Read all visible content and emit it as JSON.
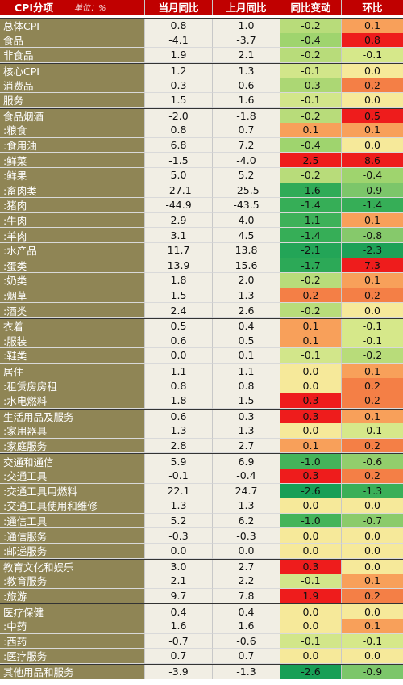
{
  "header": {
    "category": "CPI分项",
    "unit": "单位：%",
    "current_yoy": "当月同比",
    "prev_yoy": "上月同比",
    "yoy_change": "同比变动",
    "mom": "环比"
  },
  "rows": [
    {
      "name": "总体CPI",
      "cur": "0.8",
      "prev": "1.0",
      "chg": "-0.2",
      "mom": "0.1",
      "chg_color": "#b8dc7a",
      "mom_color": "#f8a05a",
      "group_start": true
    },
    {
      "name": "食品",
      "cur": "-4.1",
      "prev": "-3.7",
      "chg": "-0.4",
      "mom": "0.8",
      "chg_color": "#9fd46e",
      "mom_color": "#ee1c1c",
      "group_start": false
    },
    {
      "name": "非食品",
      "cur": "1.9",
      "prev": "2.1",
      "chg": "-0.2",
      "mom": "-0.1",
      "chg_color": "#b8dc7a",
      "mom_color": "#d6e88a",
      "group_start": false
    },
    {
      "name": "核心CPI",
      "cur": "1.2",
      "prev": "1.3",
      "chg": "-0.1",
      "mom": "0.0",
      "chg_color": "#d2e68a",
      "mom_color": "#f6e99a",
      "group_start": true
    },
    {
      "name": "消费品",
      "cur": "0.3",
      "prev": "0.6",
      "chg": "-0.3",
      "mom": "0.2",
      "chg_color": "#acd774",
      "mom_color": "#f47f46",
      "group_start": false
    },
    {
      "name": "服务",
      "cur": "1.5",
      "prev": "1.6",
      "chg": "-0.1",
      "mom": "0.0",
      "chg_color": "#d2e68a",
      "mom_color": "#f6e99a",
      "group_start": false
    },
    {
      "name": "食品烟酒",
      "cur": "-2.0",
      "prev": "-1.8",
      "chg": "-0.2",
      "mom": "0.5",
      "chg_color": "#b8dc7a",
      "mom_color": "#ee1c1c",
      "group_start": true
    },
    {
      "name": ":粮食",
      "cur": "0.8",
      "prev": "0.7",
      "chg": "0.1",
      "mom": "0.1",
      "chg_color": "#f8a05a",
      "mom_color": "#f8a05a",
      "group_start": false
    },
    {
      "name": ":食用油",
      "cur": "6.8",
      "prev": "7.2",
      "chg": "-0.4",
      "mom": "0.0",
      "chg_color": "#9fd46e",
      "mom_color": "#f6e99a",
      "group_start": false
    },
    {
      "name": ":鲜菜",
      "cur": "-1.5",
      "prev": "-4.0",
      "chg": "2.5",
      "mom": "8.6",
      "chg_color": "#ee1c1c",
      "mom_color": "#ee1c1c",
      "group_start": false
    },
    {
      "name": ":鲜果",
      "cur": "5.0",
      "prev": "5.2",
      "chg": "-0.2",
      "mom": "-0.4",
      "chg_color": "#b8dc7a",
      "mom_color": "#9fd46e",
      "group_start": false
    },
    {
      "name": ":畜肉类",
      "cur": "-27.1",
      "prev": "-25.5",
      "chg": "-1.6",
      "mom": "-0.9",
      "chg_color": "#2fab57",
      "mom_color": "#7cc66a",
      "group_start": false
    },
    {
      "name": " :猪肉",
      "cur": "-44.9",
      "prev": "-43.5",
      "chg": "-1.4",
      "mom": "-1.4",
      "chg_color": "#36ae57",
      "mom_color": "#36ae57",
      "group_start": false
    },
    {
      "name": " :牛肉",
      "cur": "2.9",
      "prev": "4.0",
      "chg": "-1.1",
      "mom": "0.1",
      "chg_color": "#3db159",
      "mom_color": "#f8a05a",
      "group_start": false
    },
    {
      "name": " :羊肉",
      "cur": "3.1",
      "prev": "4.5",
      "chg": "-1.4",
      "mom": "-0.8",
      "chg_color": "#36ae57",
      "mom_color": "#86c96b",
      "group_start": false
    },
    {
      "name": ":水产品",
      "cur": "11.7",
      "prev": "13.8",
      "chg": "-2.1",
      "mom": "-2.3",
      "chg_color": "#23a557",
      "mom_color": "#1da157",
      "group_start": false
    },
    {
      "name": ":蛋类",
      "cur": "13.9",
      "prev": "15.6",
      "chg": "-1.7",
      "mom": "7.3",
      "chg_color": "#2ca957",
      "mom_color": "#ee1c1c",
      "group_start": false
    },
    {
      "name": ":奶类",
      "cur": "1.8",
      "prev": "2.0",
      "chg": "-0.2",
      "mom": "0.1",
      "chg_color": "#b8dc7a",
      "mom_color": "#f8a05a",
      "group_start": false
    },
    {
      "name": ":烟草",
      "cur": "1.5",
      "prev": "1.3",
      "chg": "0.2",
      "mom": "0.2",
      "chg_color": "#f47f46",
      "mom_color": "#f47f46",
      "group_start": false
    },
    {
      "name": ":酒类",
      "cur": "2.4",
      "prev": "2.6",
      "chg": "-0.2",
      "mom": "0.0",
      "chg_color": "#b8dc7a",
      "mom_color": "#f6e99a",
      "group_start": false
    },
    {
      "name": "衣着",
      "cur": "0.5",
      "prev": "0.4",
      "chg": "0.1",
      "mom": "-0.1",
      "chg_color": "#f8a05a",
      "mom_color": "#d6e88a",
      "group_start": true
    },
    {
      "name": ":服装",
      "cur": "0.6",
      "prev": "0.5",
      "chg": "0.1",
      "mom": "-0.1",
      "chg_color": "#f8a05a",
      "mom_color": "#d6e88a",
      "group_start": false
    },
    {
      "name": ":鞋类",
      "cur": "0.0",
      "prev": "0.1",
      "chg": "-0.1",
      "mom": "-0.2",
      "chg_color": "#d2e68a",
      "mom_color": "#b8dc7a",
      "group_start": false
    },
    {
      "name": "居住",
      "cur": "1.1",
      "prev": "1.1",
      "chg": "0.0",
      "mom": "0.1",
      "chg_color": "#f6e99a",
      "mom_color": "#f8a05a",
      "group_start": true
    },
    {
      "name": ":租赁房房租",
      "cur": "0.8",
      "prev": "0.8",
      "chg": "0.0",
      "mom": "0.2",
      "chg_color": "#f6e99a",
      "mom_color": "#f47f46",
      "group_start": false
    },
    {
      "name": ":水电燃料",
      "cur": "1.8",
      "prev": "1.5",
      "chg": "0.3",
      "mom": "0.2",
      "chg_color": "#ee1c1c",
      "mom_color": "#f47f46",
      "group_start": false
    },
    {
      "name": "生活用品及服务",
      "cur": "0.6",
      "prev": "0.3",
      "chg": "0.3",
      "mom": "0.1",
      "chg_color": "#ee1c1c",
      "mom_color": "#f8a05a",
      "group_start": true
    },
    {
      "name": ":家用器具",
      "cur": "1.3",
      "prev": "1.3",
      "chg": "0.0",
      "mom": "-0.1",
      "chg_color": "#f6e99a",
      "mom_color": "#d6e88a",
      "group_start": false
    },
    {
      "name": ":家庭服务",
      "cur": "2.8",
      "prev": "2.7",
      "chg": "0.1",
      "mom": "0.2",
      "chg_color": "#f8a05a",
      "mom_color": "#f47f46",
      "group_start": false
    },
    {
      "name": "交通和通信",
      "cur": "5.9",
      "prev": "6.9",
      "chg": "-1.0",
      "mom": "-0.6",
      "chg_color": "#44b45a",
      "mom_color": "#92ce6c",
      "group_start": true
    },
    {
      "name": ":交通工具",
      "cur": "-0.1",
      "prev": "-0.4",
      "chg": "0.3",
      "mom": "0.2",
      "chg_color": "#ee1c1c",
      "mom_color": "#f47f46",
      "group_start": false
    },
    {
      "name": " :交通工具用燃料",
      "cur": "22.1",
      "prev": "24.7",
      "chg": "-2.6",
      "mom": "-1.3",
      "chg_color": "#189f56",
      "mom_color": "#3aaf58",
      "group_start": false
    },
    {
      "name": " :交通工具使用和维修",
      "cur": "1.3",
      "prev": "1.3",
      "chg": "0.0",
      "mom": "0.0",
      "chg_color": "#f6e99a",
      "mom_color": "#f6e99a",
      "group_start": false
    },
    {
      "name": ":通信工具",
      "cur": "5.2",
      "prev": "6.2",
      "chg": "-1.0",
      "mom": "-0.7",
      "chg_color": "#44b45a",
      "mom_color": "#8bcb6b",
      "group_start": false
    },
    {
      "name": ":通信服务",
      "cur": "-0.3",
      "prev": "-0.3",
      "chg": "0.0",
      "mom": "0.0",
      "chg_color": "#f6e99a",
      "mom_color": "#f6e99a",
      "group_start": false
    },
    {
      "name": ":邮递服务",
      "cur": "0.0",
      "prev": "0.0",
      "chg": "0.0",
      "mom": "0.0",
      "chg_color": "#f6e99a",
      "mom_color": "#f6e99a",
      "group_start": false
    },
    {
      "name": "教育文化和娱乐",
      "cur": "3.0",
      "prev": "2.7",
      "chg": "0.3",
      "mom": "0.0",
      "chg_color": "#ee1c1c",
      "mom_color": "#f6e99a",
      "group_start": true
    },
    {
      "name": ":教育服务",
      "cur": "2.1",
      "prev": "2.2",
      "chg": "-0.1",
      "mom": "0.1",
      "chg_color": "#d2e68a",
      "mom_color": "#f8a05a",
      "group_start": false
    },
    {
      "name": ":旅游",
      "cur": "9.7",
      "prev": "7.8",
      "chg": "1.9",
      "mom": "0.2",
      "chg_color": "#ee1c1c",
      "mom_color": "#f47f46",
      "group_start": false
    },
    {
      "name": "医疗保健",
      "cur": "0.4",
      "prev": "0.4",
      "chg": "0.0",
      "mom": "0.0",
      "chg_color": "#f6e99a",
      "mom_color": "#f6e99a",
      "group_start": true
    },
    {
      "name": ":中药",
      "cur": "1.6",
      "prev": "1.6",
      "chg": "0.0",
      "mom": "0.1",
      "chg_color": "#f6e99a",
      "mom_color": "#f8a05a",
      "group_start": false
    },
    {
      "name": ":西药",
      "cur": "-0.7",
      "prev": "-0.6",
      "chg": "-0.1",
      "mom": "-0.1",
      "chg_color": "#d2e68a",
      "mom_color": "#d6e88a",
      "group_start": false
    },
    {
      "name": ":医疗服务",
      "cur": "0.7",
      "prev": "0.7",
      "chg": "0.0",
      "mom": "0.0",
      "chg_color": "#f6e99a",
      "mom_color": "#f6e99a",
      "group_start": false
    },
    {
      "name": "其他用品和服务",
      "cur": "-3.9",
      "prev": "-1.3",
      "chg": "-2.6",
      "mom": "-0.9",
      "chg_color": "#189f56",
      "mom_color": "#7cc66a",
      "group_start": true
    }
  ]
}
